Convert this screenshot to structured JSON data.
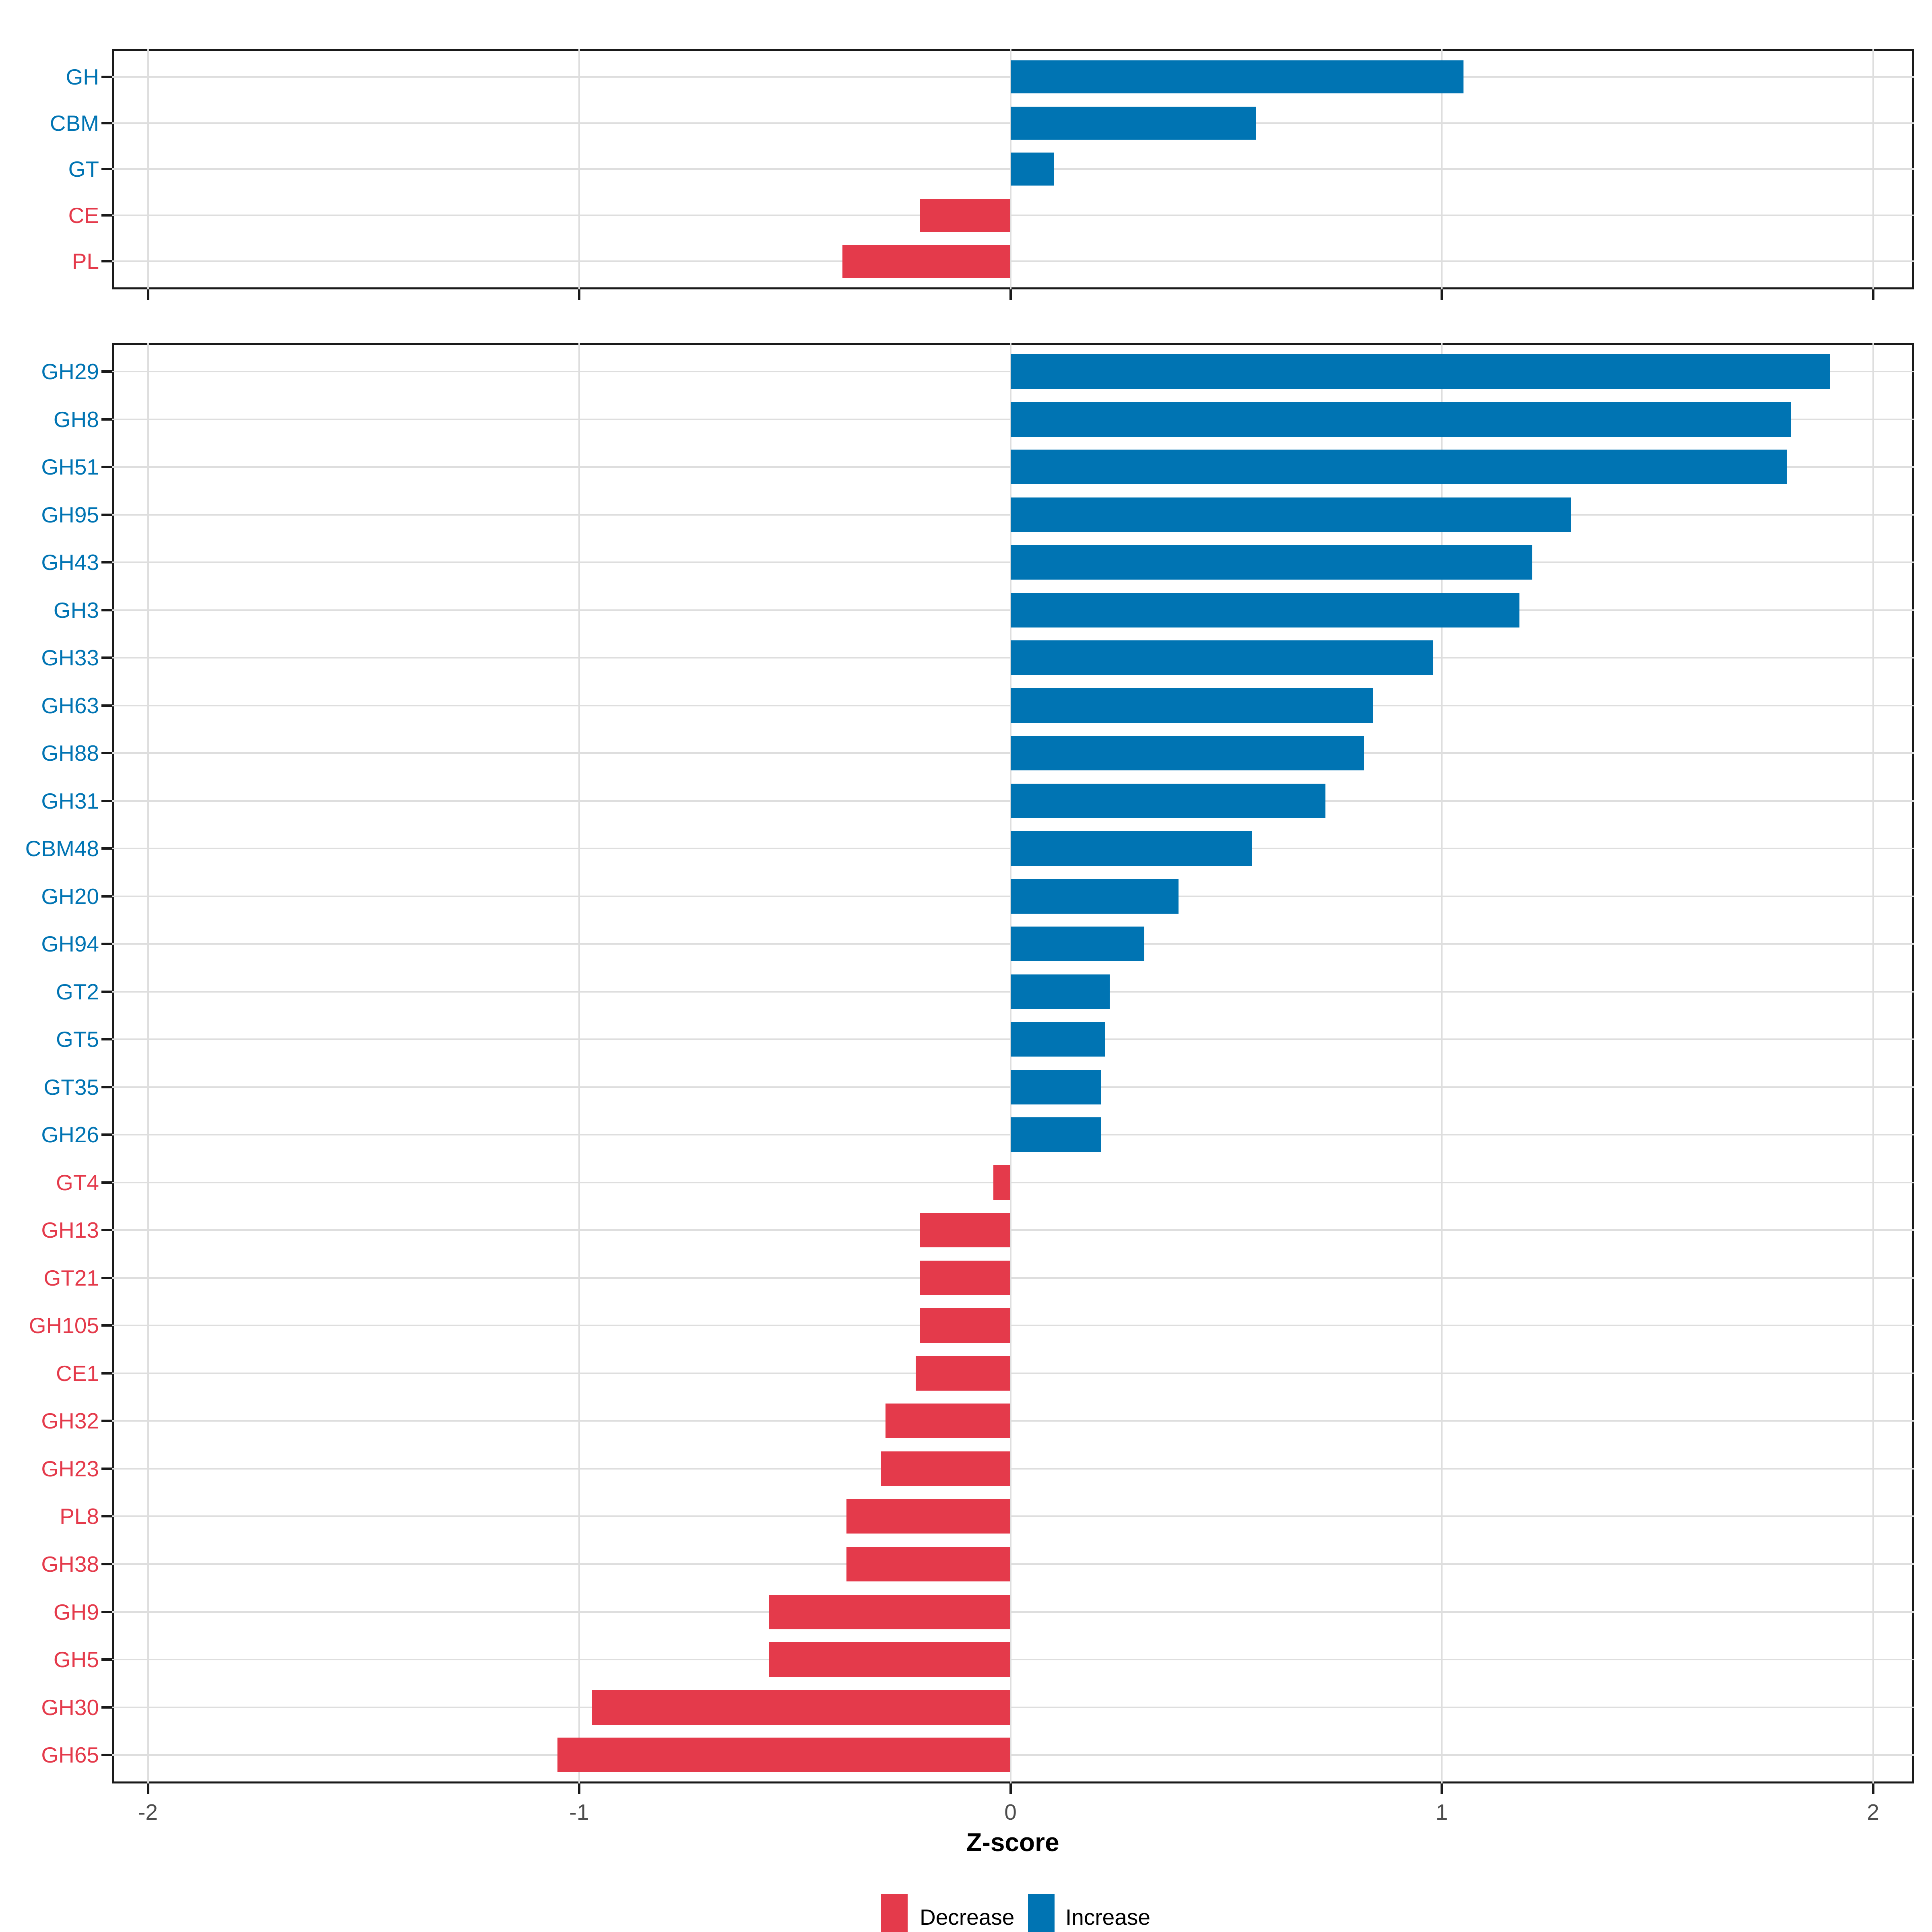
{
  "figure": {
    "background": "#ffffff"
  },
  "colors": {
    "increase": "#0074B3",
    "decrease": "#E43A4B",
    "grid": "#DEDEDE",
    "panel_border": "#1A1A1A",
    "axis_text": "#4D4D4D",
    "axis_title": "#000000"
  },
  "axis": {
    "label": "Z-score",
    "ticks": [
      -2,
      -1,
      0,
      1,
      2
    ],
    "tick_labels": [
      "-2",
      "-1",
      "0",
      "1",
      "2"
    ],
    "range": [
      -2.08,
      2.09
    ]
  },
  "legend": {
    "position": "bottom",
    "items": [
      {
        "label": "Decrease",
        "color": "#E43A4B"
      },
      {
        "label": "Increase",
        "color": "#0074B3"
      }
    ]
  },
  "chart_data": [
    {
      "type": "bar",
      "orientation": "horizontal",
      "panel": "category-summary",
      "title": "",
      "xlabel": "Z-score",
      "xlim": [
        -2.08,
        2.09
      ],
      "grid": "major-only",
      "categories": [
        "GH",
        "CBM",
        "GT",
        "CE",
        "PL"
      ],
      "values": [
        1.05,
        0.57,
        0.1,
        -0.21,
        -0.39
      ],
      "directions": [
        "Increase",
        "Increase",
        "Increase",
        "Decrease",
        "Decrease"
      ]
    },
    {
      "type": "bar",
      "orientation": "horizontal",
      "panel": "family-detail",
      "title": "",
      "xlabel": "Z-score",
      "xlim": [
        -2.08,
        2.09
      ],
      "grid": "major-only",
      "categories": [
        "GH29",
        "GH8",
        "GH51",
        "GH95",
        "GH43",
        "GH3",
        "GH33",
        "GH63",
        "GH88",
        "GH31",
        "CBM48",
        "GH20",
        "GH94",
        "GT2",
        "GT5",
        "GT35",
        "GH26",
        "GT4",
        "GH13",
        "GT21",
        "GH105",
        "CE1",
        "GH32",
        "GH23",
        "PL8",
        "GH38",
        "GH9",
        "GH5",
        "GH30",
        "GH65"
      ],
      "values": [
        1.9,
        1.81,
        1.8,
        1.3,
        1.21,
        1.18,
        0.98,
        0.84,
        0.82,
        0.73,
        0.56,
        0.39,
        0.31,
        0.23,
        0.22,
        0.21,
        0.21,
        -0.04,
        -0.21,
        -0.21,
        -0.21,
        -0.22,
        -0.29,
        -0.3,
        -0.38,
        -0.38,
        -0.56,
        -0.56,
        -0.97,
        -1.05
      ],
      "directions": [
        "Increase",
        "Increase",
        "Increase",
        "Increase",
        "Increase",
        "Increase",
        "Increase",
        "Increase",
        "Increase",
        "Increase",
        "Increase",
        "Increase",
        "Increase",
        "Increase",
        "Increase",
        "Increase",
        "Increase",
        "Decrease",
        "Decrease",
        "Decrease",
        "Decrease",
        "Decrease",
        "Decrease",
        "Decrease",
        "Decrease",
        "Decrease",
        "Decrease",
        "Decrease",
        "Decrease",
        "Decrease"
      ]
    }
  ]
}
